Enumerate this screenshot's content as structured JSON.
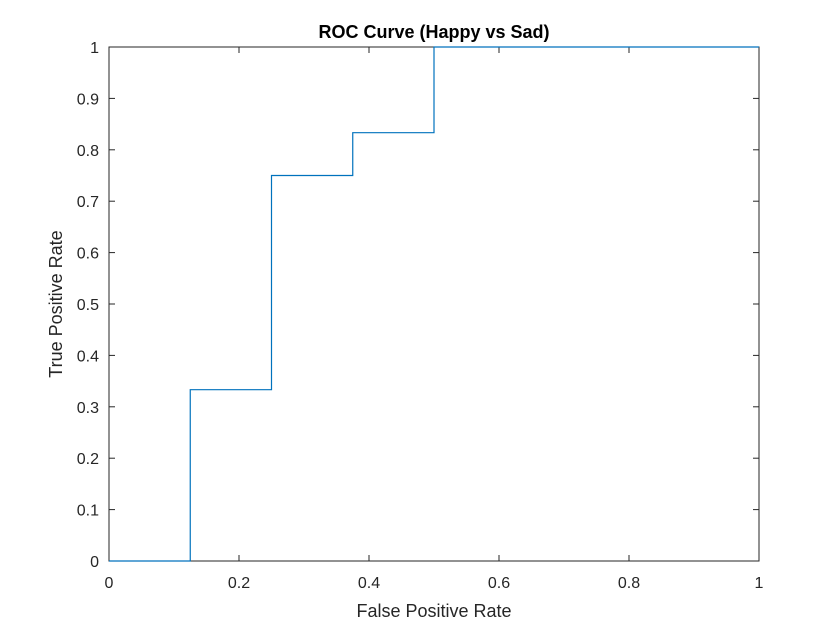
{
  "chart_data": {
    "type": "line",
    "title": "ROC Curve (Happy vs Sad)",
    "xlabel": "False Positive Rate",
    "ylabel": "True Positive Rate",
    "xlim": [
      0,
      1
    ],
    "ylim": [
      0,
      1
    ],
    "x_ticks": [
      "0",
      "0.2",
      "0.4",
      "0.6",
      "0.8",
      "1"
    ],
    "y_ticks": [
      "0",
      "0.1",
      "0.2",
      "0.3",
      "0.4",
      "0.5",
      "0.6",
      "0.7",
      "0.8",
      "0.9",
      "1"
    ],
    "grid": false,
    "legend": "none",
    "series": [
      {
        "color": "#0072bd",
        "x": [
          0,
          0.125,
          0.125,
          0.25,
          0.25,
          0.375,
          0.375,
          0.5,
          0.5,
          1
        ],
        "y": [
          0,
          0,
          0.3333,
          0.3333,
          0.75,
          0.75,
          0.8333,
          0.8333,
          1,
          1
        ]
      }
    ]
  }
}
